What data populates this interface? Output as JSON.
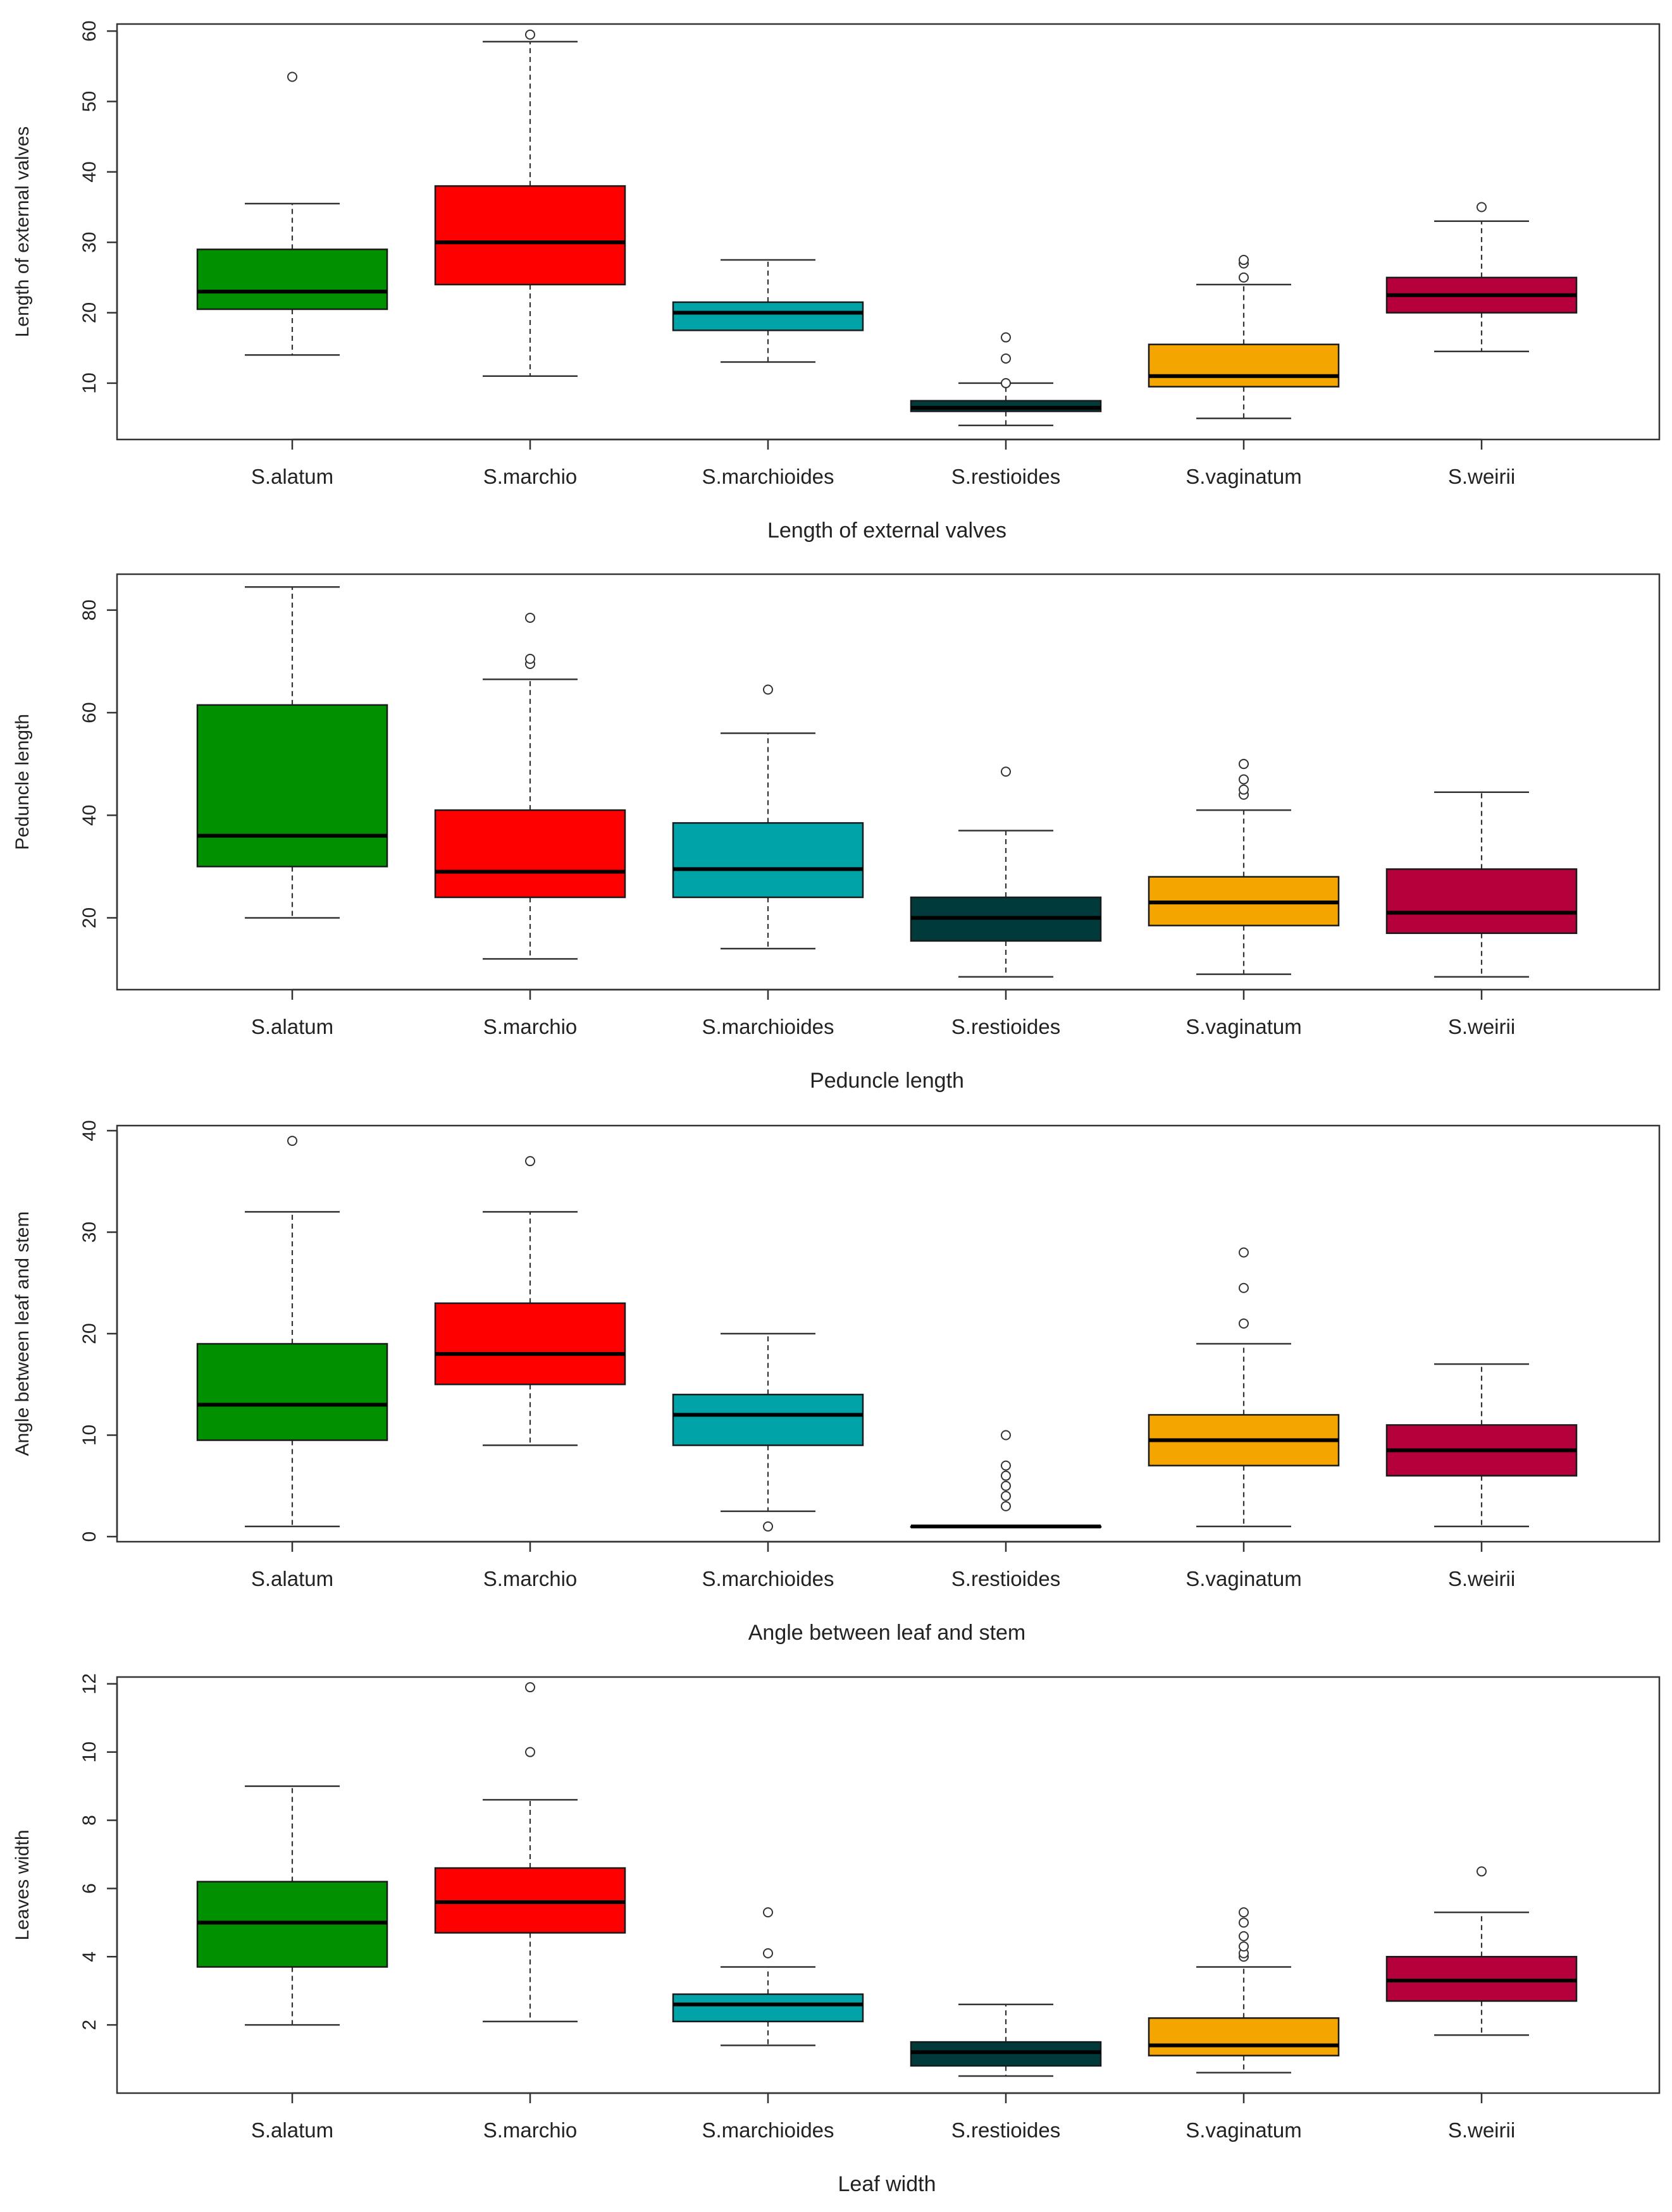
{
  "chart_data": [
    {
      "type": "boxplot",
      "xlabel": "Length of external valves",
      "ylabel": "Length of external valves",
      "ylim": [
        2,
        61
      ],
      "yticks": [
        10,
        20,
        30,
        40,
        50,
        60
      ],
      "categories": [
        "S.alatum",
        "S.marchio",
        "S.marchioides",
        "S.restioides",
        "S.vaginatum",
        "S.weirii"
      ],
      "colors": [
        "#009000",
        "#ff0000",
        "#00a4a8",
        "#003a3a",
        "#f5a500",
        "#b5003c"
      ],
      "boxes": [
        {
          "min": 14,
          "q1": 20.5,
          "median": 23,
          "q3": 29,
          "max": 35.5,
          "outliers": [
            53.5
          ]
        },
        {
          "min": 11,
          "q1": 24,
          "median": 30,
          "q3": 38,
          "max": 58.5,
          "outliers": [
            59.5
          ]
        },
        {
          "min": 13,
          "q1": 17.5,
          "median": 20,
          "q3": 21.5,
          "max": 27.5,
          "outliers": []
        },
        {
          "min": 4,
          "q1": 6,
          "median": 6.5,
          "q3": 7.5,
          "max": 10,
          "outliers": [
            10,
            13.5,
            16.5
          ]
        },
        {
          "min": 5,
          "q1": 9.5,
          "median": 11,
          "q3": 15.5,
          "max": 24,
          "outliers": [
            25,
            27,
            27.5
          ]
        },
        {
          "min": 14.5,
          "q1": 20,
          "median": 22.5,
          "q3": 25,
          "max": 33,
          "outliers": [
            35
          ]
        }
      ]
    },
    {
      "type": "boxplot",
      "xlabel": "Peduncle length",
      "ylabel": "Peduncle length",
      "ylim": [
        6,
        87
      ],
      "yticks": [
        20,
        40,
        60,
        80
      ],
      "categories": [
        "S.alatum",
        "S.marchio",
        "S.marchioides",
        "S.restioides",
        "S.vaginatum",
        "S.weirii"
      ],
      "colors": [
        "#009000",
        "#ff0000",
        "#00a4a8",
        "#003a3a",
        "#f5a500",
        "#b5003c"
      ],
      "boxes": [
        {
          "min": 20,
          "q1": 30,
          "median": 36,
          "q3": 61.5,
          "max": 84.5,
          "outliers": []
        },
        {
          "min": 12,
          "q1": 24,
          "median": 29,
          "q3": 41,
          "max": 66.5,
          "outliers": [
            69.5,
            70.5,
            78.5
          ]
        },
        {
          "min": 14,
          "q1": 24,
          "median": 29.5,
          "q3": 38.5,
          "max": 56,
          "outliers": [
            64.5
          ]
        },
        {
          "min": 8.5,
          "q1": 15.5,
          "median": 20,
          "q3": 24,
          "max": 37,
          "outliers": [
            48.5
          ]
        },
        {
          "min": 9,
          "q1": 18.5,
          "median": 23,
          "q3": 28,
          "max": 41,
          "outliers": [
            44,
            45,
            47,
            50,
            50
          ]
        },
        {
          "min": 8.5,
          "q1": 17,
          "median": 21,
          "q3": 29.5,
          "max": 44.5,
          "outliers": []
        }
      ]
    },
    {
      "type": "boxplot",
      "xlabel": "Angle between leaf and stem",
      "ylabel": "Angle between leaf and stem",
      "ylim": [
        -0.5,
        40.5
      ],
      "yticks": [
        0,
        10,
        20,
        30,
        40
      ],
      "categories": [
        "S.alatum",
        "S.marchio",
        "S.marchioides",
        "S.restioides",
        "S.vaginatum",
        "S.weirii"
      ],
      "colors": [
        "#009000",
        "#ff0000",
        "#00a4a8",
        "#003a3a",
        "#f5a500",
        "#b5003c"
      ],
      "boxes": [
        {
          "min": 1,
          "q1": 9.5,
          "median": 13,
          "q3": 19,
          "max": 32,
          "outliers": [
            39
          ]
        },
        {
          "min": 9,
          "q1": 15,
          "median": 18,
          "q3": 23,
          "max": 32,
          "outliers": [
            37
          ]
        },
        {
          "min": 2.5,
          "q1": 9,
          "median": 12,
          "q3": 14,
          "max": 20,
          "outliers": [
            1
          ]
        },
        {
          "min": 1,
          "q1": 1,
          "median": 1,
          "q3": 1,
          "max": 1,
          "outliers": [
            3,
            4,
            5,
            6,
            7,
            10
          ]
        },
        {
          "min": 1,
          "q1": 7,
          "median": 9.5,
          "q3": 12,
          "max": 19,
          "outliers": [
            21,
            24.5,
            28
          ]
        },
        {
          "min": 1,
          "q1": 6,
          "median": 8.5,
          "q3": 11,
          "max": 17,
          "outliers": []
        }
      ]
    },
    {
      "type": "boxplot",
      "xlabel": "Leaf width",
      "ylabel": "Leaves width",
      "ylim": [
        0,
        12.2
      ],
      "yticks": [
        2,
        4,
        6,
        8,
        10,
        12
      ],
      "categories": [
        "S.alatum",
        "S.marchio",
        "S.marchioides",
        "S.restioides",
        "S.vaginatum",
        "S.weirii"
      ],
      "colors": [
        "#009000",
        "#ff0000",
        "#00a4a8",
        "#003a3a",
        "#f5a500",
        "#b5003c"
      ],
      "boxes": [
        {
          "min": 2,
          "q1": 3.7,
          "median": 5,
          "q3": 6.2,
          "max": 9,
          "outliers": []
        },
        {
          "min": 2.1,
          "q1": 4.7,
          "median": 5.6,
          "q3": 6.6,
          "max": 8.6,
          "outliers": [
            10,
            11.9
          ]
        },
        {
          "min": 1.4,
          "q1": 2.1,
          "median": 2.6,
          "q3": 2.9,
          "max": 3.7,
          "outliers": [
            4.1,
            5.3
          ]
        },
        {
          "min": 0.5,
          "q1": 0.8,
          "median": 1.2,
          "q3": 1.5,
          "max": 2.6,
          "outliers": []
        },
        {
          "min": 0.6,
          "q1": 1.1,
          "median": 1.4,
          "q3": 2.2,
          "max": 3.7,
          "outliers": [
            4,
            4.1,
            4.3,
            4.6,
            5,
            5.3
          ]
        },
        {
          "min": 1.7,
          "q1": 2.7,
          "median": 3.3,
          "q3": 4,
          "max": 5.3,
          "outliers": [
            6.5
          ]
        }
      ]
    }
  ]
}
